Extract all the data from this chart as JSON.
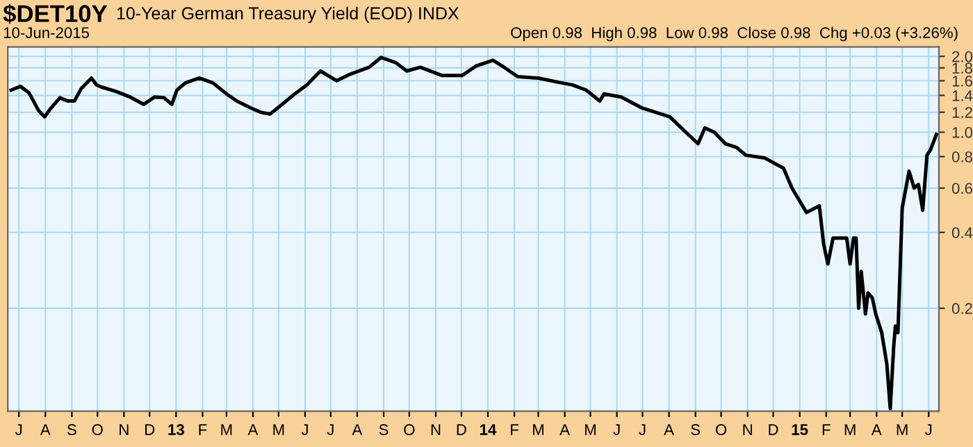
{
  "chart_data": {
    "type": "line",
    "title": "$DET10Y",
    "subtitle": "10-Year German Treasury Yield (EOD) INDX",
    "annotations": [
      "10-Jun-2015",
      "Open 0.98  High 0.98  Low 0.98  Close 0.98  Chg +0.03 (+3.26%)"
    ],
    "x": [
      "2012-06-22",
      "2012-07-03",
      "2012-07-13",
      "2012-07-24",
      "2012-07-31",
      "2012-08-07",
      "2012-08-18",
      "2012-08-27",
      "2012-09-04",
      "2012-09-12",
      "2012-09-24",
      "2012-09-30",
      "2012-10-06",
      "2012-10-23",
      "2012-11-08",
      "2012-11-24",
      "2012-12-07",
      "2012-12-18",
      "2012-12-27",
      "2013-01-02",
      "2013-01-12",
      "2013-01-28",
      "2013-02-13",
      "2013-03-01",
      "2013-03-13",
      "2013-03-29",
      "2013-04-10",
      "2013-04-21",
      "2013-05-04",
      "2013-05-20",
      "2013-06-03",
      "2013-06-19",
      "2013-07-08",
      "2013-07-24",
      "2013-08-15",
      "2013-08-29",
      "2013-09-15",
      "2013-09-28",
      "2013-10-14",
      "2013-11-08",
      "2013-12-02",
      "2013-12-18",
      "2014-01-07",
      "2014-01-20",
      "2014-02-05",
      "2014-03-01",
      "2014-03-24",
      "2014-04-10",
      "2014-04-26",
      "2014-05-12",
      "2014-05-17",
      "2014-06-06",
      "2014-06-30",
      "2014-08-02",
      "2014-08-18",
      "2014-09-04",
      "2014-09-12",
      "2014-09-23",
      "2014-10-06",
      "2014-10-19",
      "2014-10-30",
      "2014-11-21",
      "2014-12-13",
      "2014-12-23",
      "2015-01-09",
      "2015-01-24",
      "2015-01-29",
      "2015-02-03",
      "2015-02-09",
      "2015-02-25",
      "2015-03-01",
      "2015-03-05",
      "2015-03-08",
      "2015-03-11",
      "2015-03-14",
      "2015-03-19",
      "2015-03-22",
      "2015-03-27",
      "2015-03-31",
      "2015-04-07",
      "2015-04-13",
      "2015-04-17",
      "2015-04-21",
      "2015-04-23",
      "2015-04-26",
      "2015-05-01",
      "2015-05-09",
      "2015-05-15",
      "2015-05-20",
      "2015-05-25",
      "2015-05-30",
      "2015-06-03",
      "2015-06-10"
    ],
    "series": [
      {
        "color": "#000000",
        "values": [
          1.47,
          1.52,
          1.43,
          1.22,
          1.15,
          1.24,
          1.37,
          1.33,
          1.33,
          1.49,
          1.64,
          1.54,
          1.51,
          1.45,
          1.38,
          1.29,
          1.38,
          1.37,
          1.29,
          1.47,
          1.57,
          1.64,
          1.57,
          1.42,
          1.33,
          1.25,
          1.2,
          1.18,
          1.28,
          1.42,
          1.54,
          1.75,
          1.6,
          1.7,
          1.81,
          1.98,
          1.89,
          1.75,
          1.81,
          1.68,
          1.68,
          1.83,
          1.93,
          1.81,
          1.66,
          1.64,
          1.58,
          1.54,
          1.47,
          1.33,
          1.42,
          1.38,
          1.25,
          1.15,
          1.02,
          0.9,
          1.04,
          1.0,
          0.9,
          0.87,
          0.81,
          0.79,
          0.72,
          0.6,
          0.48,
          0.51,
          0.36,
          0.3,
          0.38,
          0.38,
          0.3,
          0.38,
          0.38,
          0.2,
          0.28,
          0.19,
          0.23,
          0.22,
          0.19,
          0.16,
          0.12,
          0.08,
          0.14,
          0.17,
          0.16,
          0.5,
          0.7,
          0.6,
          0.62,
          0.49,
          0.81,
          0.85,
          0.98
        ]
      }
    ],
    "log": true,
    "ylim": [
      0.078,
      2.18
    ],
    "yticks": [
      0.2,
      0.4,
      0.6,
      0.8,
      {
        "value": 1,
        "label": "1.0"
      },
      1.2,
      1.4,
      1.6,
      1.8,
      {
        "value": 2,
        "label": "2.0"
      }
    ],
    "xlim": [
      "2012-06-18",
      "2015-06-13"
    ],
    "xticks": [
      {
        "value": "2012-07-01",
        "label": "J"
      },
      {
        "value": "2012-08-01",
        "label": "A"
      },
      {
        "value": "2012-09-01",
        "label": "S"
      },
      {
        "value": "2012-10-01",
        "label": "O"
      },
      {
        "value": "2012-11-01",
        "label": "N"
      },
      {
        "value": "2012-12-01",
        "label": "D"
      },
      {
        "value": "2013-01-01",
        "label": "13"
      },
      {
        "value": "2013-02-01",
        "label": "F"
      },
      {
        "value": "2013-03-01",
        "label": "M"
      },
      {
        "value": "2013-04-01",
        "label": "A"
      },
      {
        "value": "2013-05-01",
        "label": "M"
      },
      {
        "value": "2013-06-01",
        "label": "J"
      },
      {
        "value": "2013-07-01",
        "label": "J"
      },
      {
        "value": "2013-08-01",
        "label": "A"
      },
      {
        "value": "2013-09-01",
        "label": "S"
      },
      {
        "value": "2013-10-01",
        "label": "O"
      },
      {
        "value": "2013-11-01",
        "label": "N"
      },
      {
        "value": "2013-12-01",
        "label": "D"
      },
      {
        "value": "2014-01-01",
        "label": "14"
      },
      {
        "value": "2014-02-01",
        "label": "F"
      },
      {
        "value": "2014-03-01",
        "label": "M"
      },
      {
        "value": "2014-04-01",
        "label": "A"
      },
      {
        "value": "2014-05-01",
        "label": "M"
      },
      {
        "value": "2014-06-01",
        "label": "J"
      },
      {
        "value": "2014-07-01",
        "label": "J"
      },
      {
        "value": "2014-08-01",
        "label": "A"
      },
      {
        "value": "2014-09-01",
        "label": "S"
      },
      {
        "value": "2014-10-01",
        "label": "O"
      },
      {
        "value": "2014-11-01",
        "label": "N"
      },
      {
        "value": "2014-12-01",
        "label": "D"
      },
      {
        "value": "2015-01-01",
        "label": "15"
      },
      {
        "value": "2015-02-01",
        "label": "F"
      },
      {
        "value": "2015-03-01",
        "label": "M"
      },
      {
        "value": "2015-04-01",
        "label": "A"
      },
      {
        "value": "2015-05-01",
        "label": "M"
      },
      {
        "value": "2015-06-01",
        "label": "J"
      }
    ],
    "grid": true,
    "marker": "none",
    "line_style": "solid",
    "legend": false
  }
}
